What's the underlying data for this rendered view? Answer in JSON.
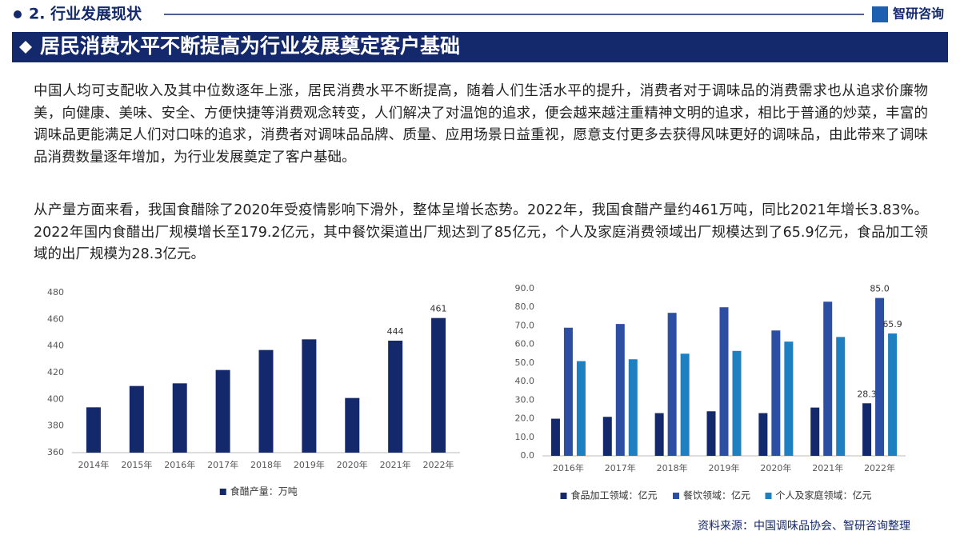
{
  "header": {
    "section": "2. 行业发展现状",
    "logo": "智研咨询",
    "title": "居民消费水平不断提高为行业发展奠定客户基础"
  },
  "paragraphs": [
    "中国人均可支配收入及其中位数逐年上涨，居民消费水平不断提高，随着人们生活水平的提升，消费者对于调味品的消费需求也从追求价廉物美，向健康、美味、安全、方便快捷等消费观念转变，人们解决了对温饱的追求，便会越来越注重精神文明的追求，相比于普通的炒菜，丰富的调味品更能满足人们对口味的追求，消费者对调味品品牌、质量、应用场景日益重视，愿意支付更多去获得风味更好的调味品，由此带来了调味品消费数量逐年增加，为行业发展奠定了客户基础。",
    "从产量方面来看，我国食醋除了2020年受疫情影响下滑外，整体呈增长态势。2022年，我国食醋产量约461万吨，同比2021年增长3.83%。2022年国内食醋出厂规模增长至179.2亿元，其中餐饮渠道出厂规达到了85亿元，个人及家庭消费领域出厂规模达到了65.9亿元，食品加工领域的出厂规模为28.3亿元。"
  ],
  "source": "资料来源：中国调味品协会、智研咨询整理",
  "chart_data": [
    {
      "type": "bar",
      "categories": [
        "2014年",
        "2015年",
        "2016年",
        "2017年",
        "2018年",
        "2019年",
        "2020年",
        "2021年",
        "2022年"
      ],
      "series": [
        {
          "name": "食醋产量：万吨",
          "color": "#14296b",
          "values": [
            394,
            410,
            412,
            422,
            437,
            445,
            401,
            444,
            461
          ],
          "value_labels": [
            null,
            null,
            null,
            null,
            null,
            null,
            null,
            "444",
            "461"
          ]
        }
      ],
      "ylim": [
        360,
        480
      ],
      "yticks": [
        360,
        380,
        400,
        420,
        440,
        460,
        480
      ],
      "grid": false
    },
    {
      "type": "bar",
      "categories": [
        "2016年",
        "2017年",
        "2018年",
        "2019年",
        "2020年",
        "2021年",
        "2022年"
      ],
      "series": [
        {
          "name": "食品加工领域：亿元",
          "color": "#14296b",
          "values": [
            20,
            21,
            23,
            24,
            23,
            26,
            28.3
          ],
          "value_labels": [
            null,
            null,
            null,
            null,
            null,
            null,
            "28.3"
          ]
        },
        {
          "name": "餐饮领域：亿元",
          "color": "#2c4ea3",
          "values": [
            69,
            71,
            77,
            80,
            67.5,
            83,
            85
          ],
          "value_labels": [
            null,
            null,
            null,
            null,
            null,
            null,
            "85.0"
          ]
        },
        {
          "name": "个人及家庭领域：亿元",
          "color": "#1e80c1",
          "values": [
            51,
            52,
            55,
            56.5,
            61.5,
            64,
            65.9
          ],
          "value_labels": [
            null,
            null,
            null,
            null,
            null,
            null,
            "65.9"
          ]
        }
      ],
      "ylim": [
        0,
        90
      ],
      "yticks": [
        {
          "value": 0,
          "label": "0.0"
        },
        {
          "value": 10,
          "label": "10.0"
        },
        {
          "value": 20,
          "label": "20.0"
        },
        {
          "value": 30,
          "label": "30.0"
        },
        {
          "value": 40,
          "label": "40.0"
        },
        {
          "value": 50,
          "label": "50.0"
        },
        {
          "value": 60,
          "label": "60.0"
        },
        {
          "value": 70,
          "label": "70.0"
        },
        {
          "value": 80,
          "label": "80.0"
        },
        {
          "value": 90,
          "label": "90.0"
        }
      ],
      "grid": false
    }
  ]
}
